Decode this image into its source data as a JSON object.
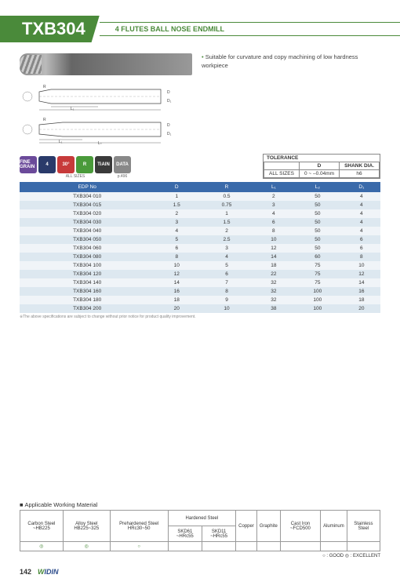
{
  "header": {
    "code": "TXB304",
    "subtitle": "4 FLUTES BALL NOSE ENDMILL"
  },
  "bullet": "Suitable for curvature and copy machining of low hardness workpiece",
  "badges": {
    "items": [
      {
        "label": "FINE GRAIN",
        "cls": "b-purple"
      },
      {
        "label": "4",
        "cls": "b-navy"
      },
      {
        "label": "30°",
        "cls": "b-red"
      },
      {
        "label": "R",
        "cls": "b-green"
      },
      {
        "label": "TiAlN",
        "cls": "b-dark"
      },
      {
        "label": "DATA",
        "cls": "b-gray"
      }
    ],
    "sub_allsizes": "ALL SIZES",
    "sub_page": "p.496"
  },
  "tolerance": {
    "title": "TOLERANCE",
    "cols": [
      "",
      "D",
      "SHANK DIA."
    ],
    "row": [
      "ALL SIZES",
      "0 ~ –0.04mm",
      "h6"
    ]
  },
  "spec": {
    "headers": [
      "EDP No",
      "D",
      "R",
      "L₁",
      "L₂",
      "D₁"
    ],
    "rows": [
      [
        "TXB304 010",
        "1",
        "0.5",
        "2",
        "50",
        "4"
      ],
      [
        "TXB304 015",
        "1.5",
        "0.75",
        "3",
        "50",
        "4"
      ],
      [
        "TXB304 020",
        "2",
        "1",
        "4",
        "50",
        "4"
      ],
      [
        "TXB304 030",
        "3",
        "1.5",
        "6",
        "50",
        "4"
      ],
      [
        "TXB304 040",
        "4",
        "2",
        "8",
        "50",
        "4"
      ],
      [
        "TXB304 050",
        "5",
        "2.5",
        "10",
        "50",
        "6"
      ],
      [
        "TXB304 060",
        "6",
        "3",
        "12",
        "50",
        "6"
      ],
      [
        "TXB304 080",
        "8",
        "4",
        "14",
        "60",
        "8"
      ],
      [
        "TXB304 100",
        "10",
        "5",
        "18",
        "75",
        "10"
      ],
      [
        "TXB304 120",
        "12",
        "6",
        "22",
        "75",
        "12"
      ],
      [
        "TXB304 140",
        "14",
        "7",
        "32",
        "75",
        "14"
      ],
      [
        "TXB304 160",
        "16",
        "8",
        "32",
        "100",
        "16"
      ],
      [
        "TXB304 180",
        "18",
        "9",
        "32",
        "100",
        "18"
      ],
      [
        "TXB304 200",
        "20",
        "10",
        "38",
        "100",
        "20"
      ]
    ],
    "footnote": "※The above specifications are subject to change without prior notice for product quality improvement."
  },
  "materials": {
    "title": "Applicable Working Material",
    "cols": [
      "Carbon Steel ~HB225",
      "Alloy Steel HB225~325",
      "Prehardened Steel HRc30~50",
      "SKD61 ~HRc55",
      "SKD11 ~HRc55",
      "Copper",
      "Graphite",
      "Cast Iron ~FCD500",
      "Aluminum",
      "Stainless Steel"
    ],
    "hardened_header": "Hardened Steel",
    "marks": [
      "◎",
      "◎",
      "○",
      "",
      "",
      "",
      "",
      "",
      "",
      ""
    ],
    "legend": "○ : GOOD  ◎ : EXCELLENT"
  },
  "footer": {
    "page": "142",
    "brand": "WIDIN"
  }
}
